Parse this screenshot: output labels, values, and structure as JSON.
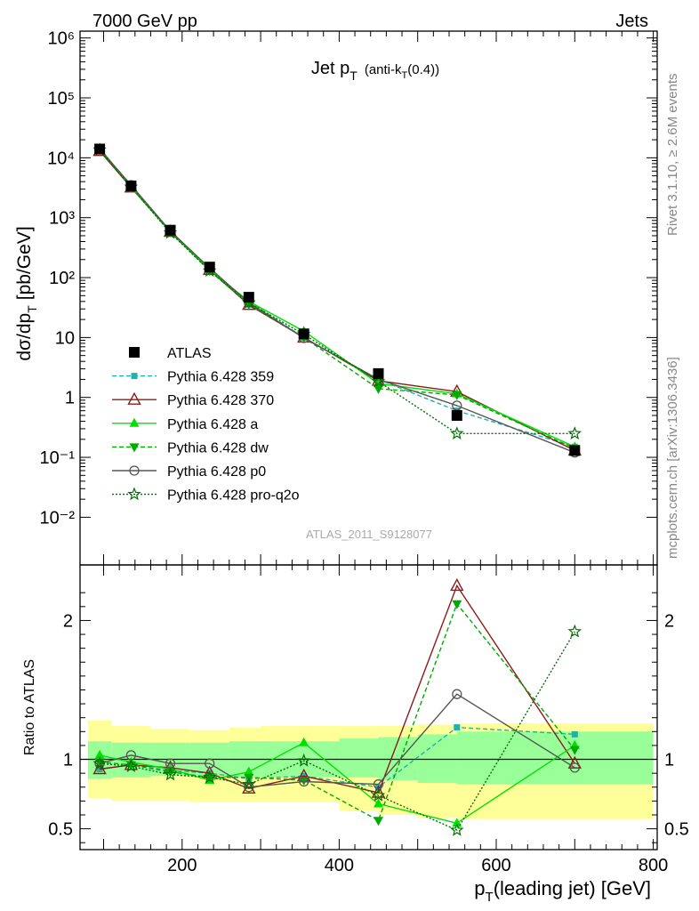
{
  "header": {
    "left": "7000 GeV pp",
    "right": "Jets"
  },
  "side": {
    "rivet": "Rivet 3.1.10, ≥ 2.6M events",
    "mcplots": "mcplots.cern.ch [arXiv:1306.3436]"
  },
  "analysis_id": "ATLAS_2011_S9128077",
  "colors": {
    "atlas": "#000000",
    "p359": "#20b2aa",
    "p370": "#8b1a1a",
    "pa": "#00e000",
    "pdw": "#00aa00",
    "pp0": "#555555",
    "pq2o": "#007000",
    "band_outer": "#ffff99",
    "band_inner": "#99ff99"
  },
  "chart_data": [
    {
      "type": "line",
      "panel": "main",
      "title_main": "Jet p",
      "title_sub": "T",
      "title_extra_a": "(anti-k",
      "title_extra_sub": "T",
      "title_extra_b": "(0.4))",
      "ylabel_a": "dσ/dp",
      "ylabel_sub": "T",
      "ylabel_b": "[pb/GeV]",
      "yscale": "log",
      "ylim": [
        0.0016,
        1300000
      ],
      "xlim": [
        70,
        805
      ],
      "ytick_labels": [
        "10⁻²",
        "10⁻¹",
        "1",
        "10",
        "10²",
        "10³",
        "10⁴",
        "10⁵",
        "10⁶"
      ],
      "ytick_values": [
        0.01,
        0.1,
        1,
        10,
        100,
        1000,
        10000,
        100000,
        1000000
      ],
      "legend_position": "left-center",
      "series": [
        {
          "name": "ATLAS",
          "style": "data",
          "x": [
            95,
            135,
            185,
            235,
            285,
            355,
            450,
            550,
            700
          ],
          "y": [
            14000,
            3400,
            620,
            150,
            47,
            11.5,
            2.5,
            0.5,
            0.13
          ]
        },
        {
          "name": "Pythia 6.428 359",
          "style": "p359",
          "x": [
            95,
            135,
            185,
            235,
            285,
            355,
            450,
            550,
            700
          ],
          "y": [
            13000,
            3250,
            570,
            135,
            40,
            10,
            2.0,
            0.6,
            0.15
          ]
        },
        {
          "name": "Pythia 6.428 370",
          "style": "p370",
          "x": [
            95,
            135,
            185,
            235,
            285,
            355,
            450,
            550,
            700
          ],
          "y": [
            13000,
            3200,
            580,
            135,
            35,
            10,
            1.9,
            1.25,
            0.13
          ]
        },
        {
          "name": "Pythia 6.428 a",
          "style": "pa",
          "x": [
            95,
            135,
            185,
            235,
            285,
            355,
            450,
            550,
            700
          ],
          "y": [
            14500,
            3300,
            570,
            135,
            40,
            12.8,
            1.7,
            1.15,
            0.15
          ]
        },
        {
          "name": "Pythia 6.428 dw",
          "style": "pdw",
          "x": [
            95,
            135,
            185,
            235,
            285,
            355,
            450,
            550,
            700
          ],
          "y": [
            13500,
            3200,
            580,
            130,
            36,
            10,
            1.4,
            1.1,
            0.14
          ]
        },
        {
          "name": "Pythia 6.428 p0",
          "style": "pp0",
          "x": [
            95,
            135,
            185,
            235,
            285,
            355,
            450,
            550,
            700
          ],
          "y": [
            14000,
            3500,
            600,
            145,
            38,
            9.8,
            2.0,
            0.73,
            0.12
          ]
        },
        {
          "name": "Pythia 6.428 pro-q2o",
          "style": "pq2o",
          "x": [
            95,
            135,
            185,
            235,
            285,
            355,
            450,
            550,
            700
          ],
          "y": [
            13600,
            3250,
            560,
            130,
            38,
            11.3,
            1.85,
            0.25,
            0.25
          ]
        }
      ]
    },
    {
      "type": "line",
      "panel": "ratio",
      "ylabel": "Ratio to ATLAS",
      "ylim": [
        0.35,
        2.4
      ],
      "xlim": [
        70,
        805
      ],
      "xlabel_a": "p",
      "xlabel_sub": "T",
      "xlabel_b": "(leading jet) [GeV]",
      "xtick_values": [
        200,
        400,
        600,
        800
      ],
      "xtick_labels": [
        "200",
        "400",
        "600",
        "800"
      ],
      "ytick_values": [
        0.5,
        1,
        2
      ],
      "ytick_labels": [
        "0.5",
        "1",
        "2"
      ],
      "band": {
        "edges": [
          80,
          110,
          160,
          210,
          260,
          300,
          400,
          450,
          500,
          550,
          800
        ],
        "inner_lo": [
          0.86,
          0.87,
          0.88,
          0.88,
          0.87,
          0.87,
          0.87,
          0.85,
          0.83,
          0.82
        ],
        "inner_hi": [
          1.13,
          1.12,
          1.12,
          1.12,
          1.13,
          1.13,
          1.15,
          1.16,
          1.18,
          1.2
        ],
        "outer_lo": [
          0.72,
          0.7,
          0.7,
          0.69,
          0.69,
          0.69,
          0.63,
          0.6,
          0.58,
          0.57
        ],
        "outer_hi": [
          1.28,
          1.24,
          1.22,
          1.21,
          1.23,
          1.24,
          1.24,
          1.24,
          1.25,
          1.26
        ]
      },
      "series": [
        {
          "name": "Pythia 6.428 359",
          "style": "p359",
          "x": [
            95,
            135,
            185,
            235,
            285,
            355,
            450,
            550,
            700
          ],
          "y": [
            0.93,
            0.96,
            0.92,
            0.9,
            0.86,
            0.88,
            0.8,
            1.23,
            1.18
          ]
        },
        {
          "name": "Pythia 6.428 370",
          "style": "p370",
          "x": [
            95,
            135,
            185,
            235,
            285,
            355,
            450,
            550,
            700
          ],
          "y": [
            0.93,
            0.96,
            0.94,
            0.9,
            0.79,
            0.88,
            0.76,
            2.25,
            0.97
          ]
        },
        {
          "name": "Pythia 6.428 a",
          "style": "pa",
          "x": [
            95,
            135,
            185,
            235,
            285,
            355,
            450,
            550,
            700
          ],
          "y": [
            1.03,
            0.98,
            0.93,
            0.85,
            0.91,
            1.12,
            0.68,
            0.54,
            1.1
          ]
        },
        {
          "name": "Pythia 6.428 dw",
          "style": "pdw",
          "x": [
            95,
            135,
            185,
            235,
            285,
            355,
            450,
            550,
            700
          ],
          "y": [
            0.98,
            0.96,
            0.91,
            0.87,
            0.87,
            0.85,
            0.56,
            2.12,
            1.07
          ]
        },
        {
          "name": "Pythia 6.428 p0",
          "style": "pp0",
          "x": [
            95,
            135,
            185,
            235,
            285,
            355,
            450,
            550,
            700
          ],
          "y": [
            0.97,
            1.03,
            0.97,
            0.97,
            0.8,
            0.84,
            0.82,
            1.47,
            0.94
          ]
        },
        {
          "name": "Pythia 6.428 pro-q2o",
          "style": "pq2o",
          "x": [
            95,
            135,
            185,
            235,
            285,
            355,
            450,
            550,
            700
          ],
          "y": [
            0.97,
            0.95,
            0.89,
            0.87,
            0.82,
            0.99,
            0.74,
            0.49,
            1.92
          ]
        }
      ]
    }
  ]
}
